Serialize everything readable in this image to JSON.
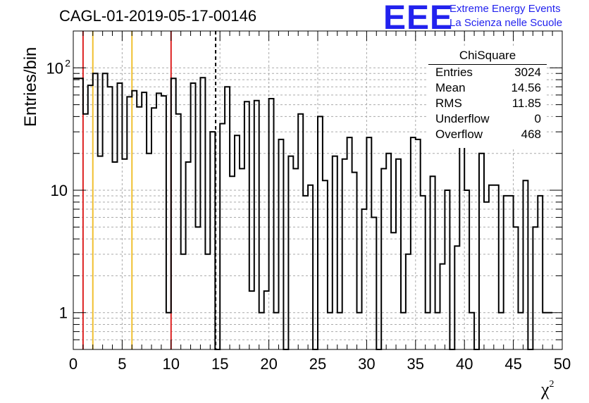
{
  "title": "CAGL-01-2019-05-17-00146",
  "logo": {
    "mark": "EEE",
    "line1": "Extreme Energy Events",
    "line2": "La Scienza nelle Scuole"
  },
  "stats": {
    "name": "ChiSquare",
    "rows": [
      {
        "key": "Entries",
        "value": "3024"
      },
      {
        "key": "Mean",
        "value": "14.56"
      },
      {
        "key": "RMS",
        "value": "11.85"
      },
      {
        "key": "Underflow",
        "value": "0"
      },
      {
        "key": "Overflow",
        "value": "468"
      }
    ]
  },
  "colors": {
    "hist": "#000000",
    "red": "#dd2222",
    "yellow": "#f0c030",
    "grid": "#aaaaaa"
  },
  "chart_data": {
    "type": "bar",
    "ylog": true,
    "ylabel": "Entries/bin",
    "xlabel": "χ",
    "xlabel_sup": "2",
    "xlim": [
      0,
      50
    ],
    "ylim": [
      0.5,
      200
    ],
    "bin_width": 0.5,
    "xticks": [
      0,
      5,
      10,
      15,
      20,
      25,
      30,
      35,
      40,
      45,
      50
    ],
    "yticks": [
      {
        "value": 1,
        "label": "1"
      },
      {
        "value": 10,
        "label": "10"
      },
      {
        "value": 100,
        "label": "10",
        "sup": "2"
      }
    ],
    "grid": true,
    "vertical_lines": [
      {
        "x": 1,
        "color": "red",
        "style": "solid"
      },
      {
        "x": 2,
        "color": "yellow",
        "style": "solid"
      },
      {
        "x": 6,
        "color": "yellow",
        "style": "solid"
      },
      {
        "x": 10,
        "color": "red",
        "style": "solid"
      },
      {
        "x": 14.56,
        "color": "black",
        "style": "dashed"
      }
    ],
    "values": [
      82,
      82,
      42,
      72,
      90,
      19,
      90,
      70,
      17,
      75,
      18,
      58,
      65,
      48,
      63,
      20,
      47,
      62,
      59,
      1,
      82,
      42,
      3,
      17,
      75,
      5,
      83,
      3,
      30,
      0.5,
      35,
      70,
      13,
      28,
      15,
      53,
      1.5,
      54,
      1,
      1.5,
      56,
      1,
      26,
      0.5,
      19,
      15,
      42,
      9,
      11,
      0.5,
      40,
      12,
      1,
      19,
      1,
      18,
      27,
      14,
      1,
      7,
      27,
      6,
      0.5,
      15,
      20,
      4.5,
      18,
      1,
      3,
      27,
      26,
      9,
      1,
      13,
      1,
      2.5,
      10,
      0.5,
      3.5,
      32,
      10,
      1,
      0.5,
      20,
      8,
      11,
      11,
      1,
      9,
      9,
      5,
      1,
      12,
      0.5,
      5,
      9,
      1,
      1
    ]
  }
}
